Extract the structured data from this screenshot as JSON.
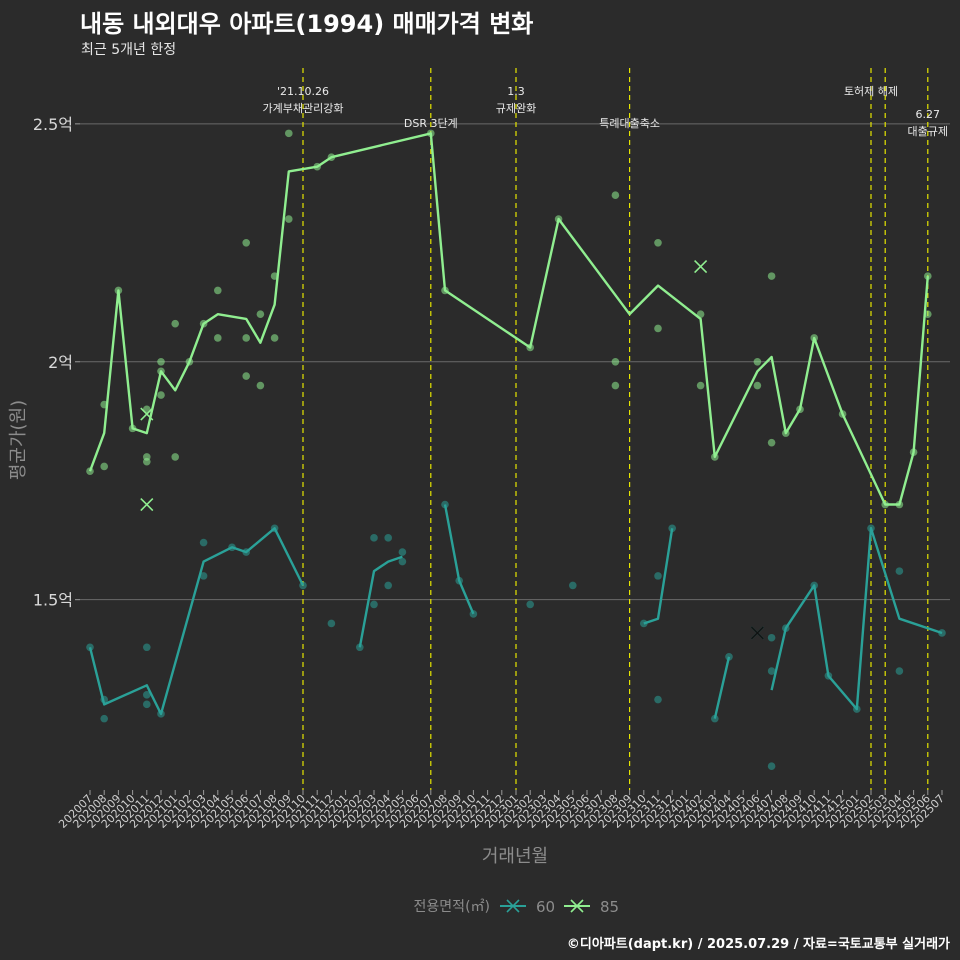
{
  "chart_data": {
    "type": "line",
    "title": "내동 내외대우 아파트(1994) 매매가격 변화",
    "subtitle": "최근 5개년 한정",
    "xlabel": "거래년월",
    "ylabel": "평균가(원)",
    "caption": "©디아파트(dapt.kr) / 2025.07.29 / 자료=국토교통부 실거래가",
    "legend_title": "전용면적(㎡)",
    "legend_position": "bottom",
    "grid": true,
    "ylim": [
      1.1,
      2.63
    ],
    "y_ticks": [
      1.5,
      2.0,
      2.5
    ],
    "y_tick_labels": [
      "1.5억",
      "2억",
      "2.5억"
    ],
    "categories": [
      "202007",
      "202008",
      "202009",
      "202010",
      "202011",
      "202012",
      "202101",
      "202102",
      "202103",
      "202104",
      "202105",
      "202106",
      "202107",
      "202108",
      "202109",
      "202110",
      "202111",
      "202112",
      "202201",
      "202202",
      "202203",
      "202204",
      "202205",
      "202206",
      "202207",
      "202208",
      "202209",
      "202210",
      "202211",
      "202212",
      "202301",
      "202302",
      "202303",
      "202304",
      "202305",
      "202306",
      "202307",
      "202308",
      "202309",
      "202310",
      "202311",
      "202312",
      "202401",
      "202402",
      "202403",
      "202404",
      "202405",
      "202406",
      "202407",
      "202408",
      "202409",
      "202410",
      "202411",
      "202412",
      "202501",
      "202502",
      "202503",
      "202504",
      "202505",
      "202506",
      "202507"
    ],
    "events": [
      {
        "x": 15.0,
        "label": "'21.10.26\n가계부채관리강화",
        "level": 0
      },
      {
        "x": 24.0,
        "label": "DSR 3단계",
        "level": 1
      },
      {
        "x": 30.0,
        "label": "1.3\n규제완화",
        "level": 0
      },
      {
        "x": 38.0,
        "label": "특례대출축소",
        "level": 1
      },
      {
        "x": 55.0,
        "label": "토허제 해제",
        "level": 0
      },
      {
        "x": 56.0,
        "label": "",
        "level": 0
      },
      {
        "x": 59.0,
        "label": "6.27\n대출규제",
        "level": 1
      }
    ],
    "series": [
      {
        "name": "60",
        "color": "#2aa198",
        "marker": "x",
        "segments": [
          [
            [
              0,
              1.4
            ],
            [
              1,
              1.28
            ],
            [
              4,
              1.32
            ],
            [
              5,
              1.26
            ],
            [
              8,
              1.58
            ],
            [
              10,
              1.61
            ],
            [
              11,
              1.6
            ],
            [
              13,
              1.65
            ],
            [
              15,
              1.53
            ]
          ],
          [
            [
              19,
              1.4
            ],
            [
              20,
              1.56
            ],
            [
              21,
              1.58
            ],
            [
              22,
              1.59
            ]
          ],
          [
            [
              25,
              1.7
            ],
            [
              26,
              1.54
            ],
            [
              27,
              1.47
            ]
          ],
          [
            [
              39,
              1.45
            ],
            [
              40,
              1.46
            ],
            [
              41,
              1.65
            ]
          ],
          [
            [
              44,
              1.25
            ],
            [
              45,
              1.38
            ]
          ],
          [
            [
              48,
              1.31
            ],
            [
              49,
              1.44
            ],
            [
              51,
              1.53
            ],
            [
              52,
              1.34
            ],
            [
              54,
              1.27
            ],
            [
              55,
              1.65
            ],
            [
              57,
              1.46
            ],
            [
              60,
              1.43
            ]
          ]
        ],
        "points": [
          [
            0,
            1.4
          ],
          [
            1,
            1.29
          ],
          [
            1,
            1.25
          ],
          [
            4,
            1.4
          ],
          [
            4,
            1.3
          ],
          [
            4,
            1.28
          ],
          [
            5,
            1.26
          ],
          [
            8,
            1.62
          ],
          [
            8,
            1.55
          ],
          [
            10,
            1.61
          ],
          [
            11,
            1.6
          ],
          [
            13,
            1.65
          ],
          [
            15,
            1.53
          ],
          [
            17,
            1.45
          ],
          [
            19,
            1.4
          ],
          [
            20,
            1.63
          ],
          [
            20,
            1.49
          ],
          [
            21,
            1.63
          ],
          [
            21,
            1.53
          ],
          [
            22,
            1.6
          ],
          [
            22,
            1.58
          ],
          [
            25,
            1.7
          ],
          [
            26,
            1.54
          ],
          [
            27,
            1.47
          ],
          [
            31,
            1.49
          ],
          [
            34,
            1.53
          ],
          [
            39,
            1.45
          ],
          [
            40,
            1.55
          ],
          [
            40,
            1.29
          ],
          [
            41,
            1.65
          ],
          [
            44,
            1.25
          ],
          [
            45,
            1.38
          ],
          [
            48,
            1.42
          ],
          [
            48,
            1.35
          ],
          [
            48,
            1.15
          ],
          [
            49,
            1.44
          ],
          [
            51,
            1.53
          ],
          [
            52,
            1.34
          ],
          [
            54,
            1.27
          ],
          [
            55,
            1.65
          ],
          [
            57,
            1.56
          ],
          [
            57,
            1.35
          ],
          [
            60,
            1.43
          ]
        ],
        "cross": [
          [
            47,
            1.43
          ]
        ]
      },
      {
        "name": "85",
        "color": "#90ee90",
        "marker": "x",
        "segments": [
          [
            [
              0,
              1.77
            ],
            [
              1,
              1.85
            ],
            [
              2,
              2.15
            ],
            [
              3,
              1.86
            ],
            [
              4,
              1.85
            ],
            [
              5,
              1.98
            ],
            [
              6,
              1.94
            ],
            [
              7,
              2.0
            ],
            [
              8,
              2.08
            ],
            [
              9,
              2.1
            ],
            [
              11,
              2.09
            ],
            [
              12,
              2.04
            ],
            [
              13,
              2.12
            ],
            [
              14,
              2.4
            ],
            [
              16,
              2.41
            ],
            [
              17,
              2.43
            ],
            [
              24,
              2.48
            ],
            [
              25,
              2.15
            ],
            [
              31,
              2.03
            ],
            [
              33,
              2.3
            ],
            [
              38,
              2.1
            ],
            [
              40,
              2.16
            ],
            [
              43,
              2.09
            ],
            [
              44,
              1.8
            ],
            [
              47,
              1.98
            ],
            [
              48,
              2.01
            ],
            [
              49,
              1.85
            ],
            [
              50,
              1.9
            ],
            [
              51,
              2.05
            ],
            [
              53,
              1.89
            ],
            [
              56,
              1.7
            ],
            [
              57,
              1.7
            ],
            [
              58,
              1.81
            ],
            [
              59,
              2.18
            ]
          ]
        ],
        "points": [
          [
            0,
            1.77
          ],
          [
            1,
            1.78
          ],
          [
            1,
            1.91
          ],
          [
            2,
            2.15
          ],
          [
            3,
            1.86
          ],
          [
            4,
            1.9
          ],
          [
            4,
            1.8
          ],
          [
            4,
            1.79
          ],
          [
            5,
            2.0
          ],
          [
            5,
            1.98
          ],
          [
            5,
            1.93
          ],
          [
            6,
            2.08
          ],
          [
            6,
            1.8
          ],
          [
            7,
            2.0
          ],
          [
            8,
            2.08
          ],
          [
            9,
            2.15
          ],
          [
            9,
            2.05
          ],
          [
            11,
            2.25
          ],
          [
            11,
            2.05
          ],
          [
            11,
            1.97
          ],
          [
            12,
            2.1
          ],
          [
            12,
            1.95
          ],
          [
            13,
            2.18
          ],
          [
            13,
            2.05
          ],
          [
            14,
            2.3
          ],
          [
            14,
            2.48
          ],
          [
            16,
            2.41
          ],
          [
            17,
            2.43
          ],
          [
            24,
            2.48
          ],
          [
            25,
            2.15
          ],
          [
            31,
            2.03
          ],
          [
            33,
            2.3
          ],
          [
            37,
            2.35
          ],
          [
            37,
            2.0
          ],
          [
            37,
            1.95
          ],
          [
            40,
            2.25
          ],
          [
            40,
            2.07
          ],
          [
            43,
            2.1
          ],
          [
            43,
            1.95
          ],
          [
            44,
            1.8
          ],
          [
            47,
            2.0
          ],
          [
            47,
            1.95
          ],
          [
            48,
            2.18
          ],
          [
            48,
            1.83
          ],
          [
            49,
            1.85
          ],
          [
            50,
            1.9
          ],
          [
            51,
            2.05
          ],
          [
            53,
            1.89
          ],
          [
            56,
            1.7
          ],
          [
            57,
            1.7
          ],
          [
            58,
            1.81
          ],
          [
            59,
            2.18
          ],
          [
            59,
            2.1
          ]
        ],
        "cross": [
          [
            4,
            1.89
          ],
          [
            4,
            1.7
          ],
          [
            43,
            2.2
          ]
        ]
      }
    ]
  }
}
